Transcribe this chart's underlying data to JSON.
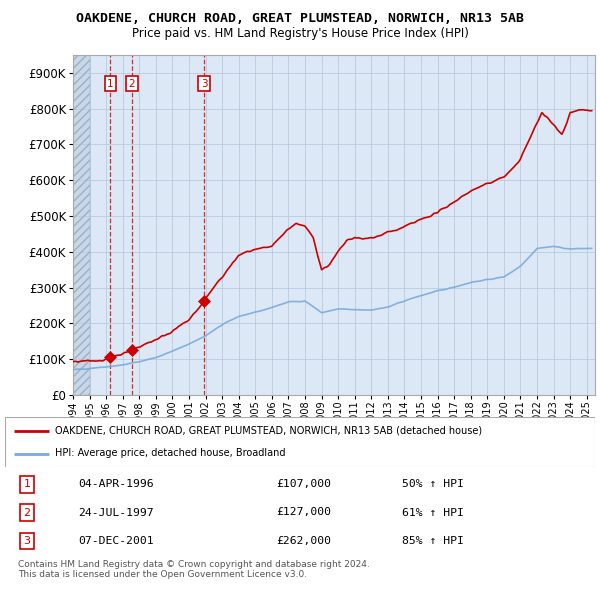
{
  "title": "OAKDENE, CHURCH ROAD, GREAT PLUMSTEAD, NORWICH, NR13 5AB",
  "subtitle": "Price paid vs. HM Land Registry's House Price Index (HPI)",
  "ylim": [
    0,
    950000
  ],
  "yticks": [
    0,
    100000,
    200000,
    300000,
    400000,
    500000,
    600000,
    700000,
    800000,
    900000
  ],
  "ytick_labels": [
    "£0",
    "£100K",
    "£200K",
    "£300K",
    "£400K",
    "£500K",
    "£600K",
    "£700K",
    "£800K",
    "£900K"
  ],
  "xlim_start": 1994.0,
  "xlim_end": 2025.5,
  "hatch_end": 1995.0,
  "sale_dates": [
    1996.26,
    1997.56,
    2001.93
  ],
  "sale_prices": [
    107000,
    127000,
    262000
  ],
  "sale_labels": [
    "1",
    "2",
    "3"
  ],
  "legend_line1": "OAKDENE, CHURCH ROAD, GREAT PLUMSTEAD, NORWICH, NR13 5AB (detached house)",
  "legend_line2": "HPI: Average price, detached house, Broadland",
  "table_rows": [
    [
      "1",
      "04-APR-1996",
      "£107,000",
      "50% ↑ HPI"
    ],
    [
      "2",
      "24-JUL-1997",
      "£127,000",
      "61% ↑ HPI"
    ],
    [
      "3",
      "07-DEC-2001",
      "£262,000",
      "85% ↑ HPI"
    ]
  ],
  "footer": "Contains HM Land Registry data © Crown copyright and database right 2024.\nThis data is licensed under the Open Government Licence v3.0.",
  "red_color": "#cc0000",
  "blue_color": "#7aaadd",
  "bg_color": "#dce8f5",
  "grid_color": "#b8cce0",
  "hatch_bg": "#c8d8e8"
}
